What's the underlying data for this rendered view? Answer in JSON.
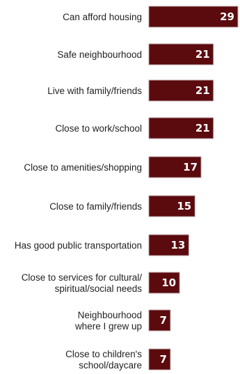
{
  "chart_data": {
    "type": "bar",
    "orientation": "horizontal",
    "categories": [
      [
        "Can afford housing"
      ],
      [
        "Safe neighbourhood"
      ],
      [
        "Live with family/friends"
      ],
      [
        "Close to work/school"
      ],
      [
        "Close to amenities/shopping"
      ],
      [
        "Close to family/friends"
      ],
      [
        "Has good public transportation"
      ],
      [
        "Close to services for cultural/",
        "spiritual/social needs"
      ],
      [
        "Neighbourhood",
        "where I grew up"
      ],
      [
        "Close to children's",
        "school/daycare"
      ]
    ],
    "values": [
      29,
      21,
      21,
      21,
      17,
      15,
      13,
      10,
      7,
      7
    ],
    "data_labels": [
      "29",
      "21",
      "21",
      "21",
      "17",
      "15",
      "13",
      "10",
      "7",
      "7"
    ],
    "bar_color": "#5b0a0e",
    "label_color": "#231f20",
    "value_label_color": "#ffffff",
    "xlim": [
      0,
      29
    ],
    "grid": false,
    "legend": "none"
  }
}
